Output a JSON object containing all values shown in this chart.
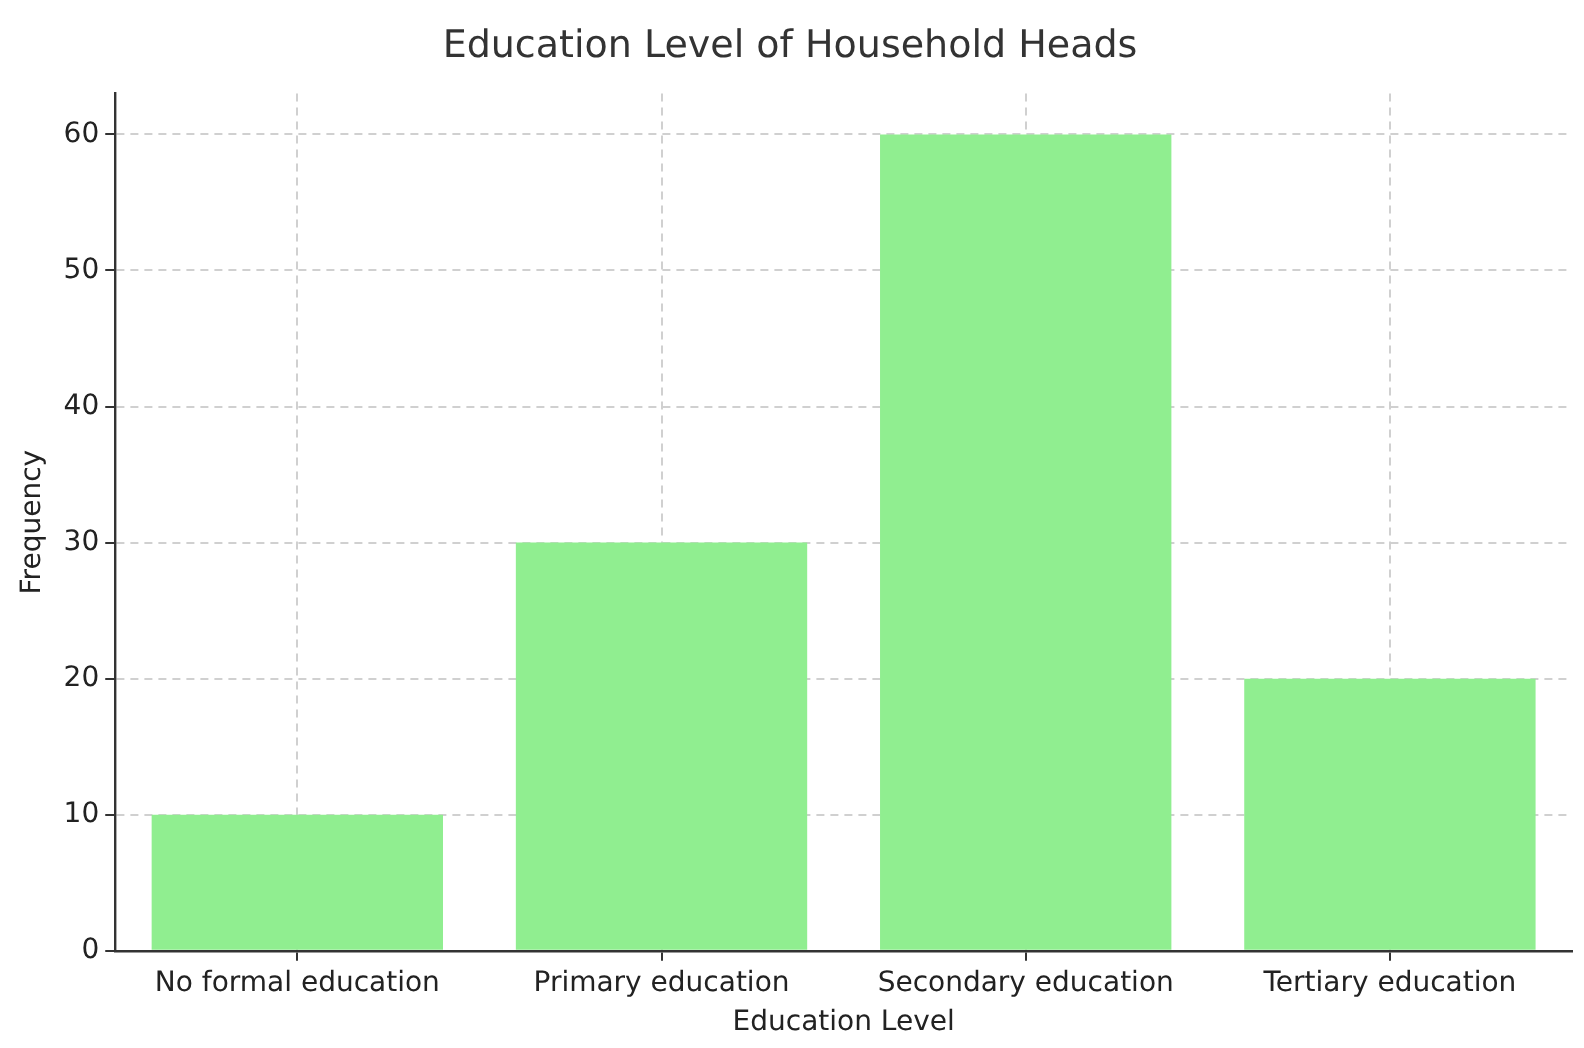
{
  "chart_data": {
    "type": "bar",
    "title": "Education Level of Household Heads",
    "xlabel": "Education Level",
    "ylabel": "Frequency",
    "categories": [
      "No formal education",
      "Primary education",
      "Secondary education",
      "Tertiary education"
    ],
    "values": [
      10,
      30,
      60,
      20
    ],
    "color": "#90ee90",
    "ylim": [
      0,
      63
    ],
    "yticks": [
      0,
      10,
      20,
      30,
      40,
      50,
      60
    ],
    "grid": true
  }
}
